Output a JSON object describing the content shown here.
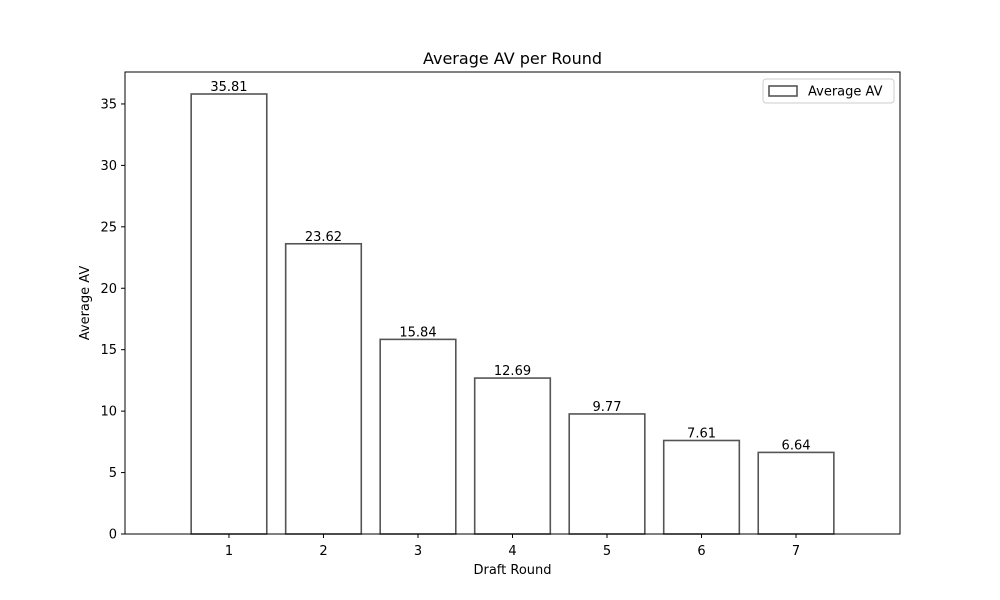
{
  "chart_data": {
    "type": "bar",
    "title": "Average AV per Round",
    "xlabel": "Draft Round",
    "ylabel": "Average AV",
    "categories": [
      "1",
      "2",
      "3",
      "4",
      "5",
      "6",
      "7"
    ],
    "series": [
      {
        "name": "Average AV",
        "values": [
          35.81,
          23.62,
          15.84,
          12.69,
          9.77,
          7.61,
          6.64
        ]
      }
    ],
    "data_labels": [
      "35.81",
      "23.62",
      "15.84",
      "12.69",
      "9.77",
      "7.61",
      "6.64"
    ],
    "ylim": [
      0,
      37.6
    ],
    "yticks": [
      0,
      5,
      10,
      15,
      20,
      25,
      30,
      35
    ],
    "grid": false,
    "legend_position": "upper right",
    "colors": {
      "bar_fill": "#ffffff",
      "bar_edge": "#555555",
      "axis": "#000000",
      "legend_border": "#cccccc"
    }
  }
}
